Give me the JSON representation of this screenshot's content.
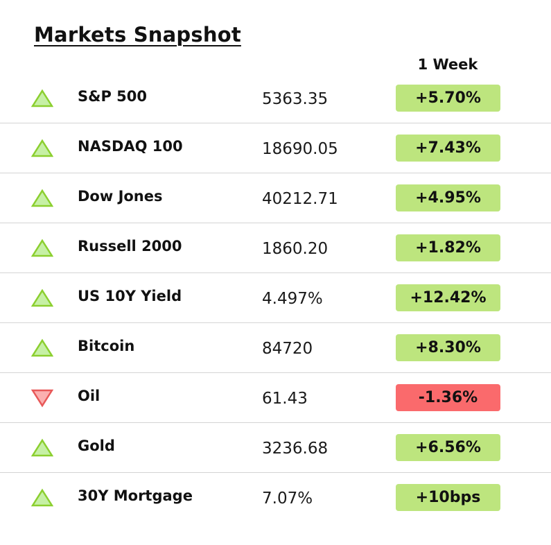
{
  "title": "Markets Snapshot",
  "column_header": "1 Week",
  "colors": {
    "up_badge": "#bde57e",
    "down_badge": "#fa6a6c",
    "up_arrow_fill": "#c6f0a5",
    "up_arrow_stroke": "#8bcf2f",
    "down_arrow_fill": "#fbb0b0",
    "down_arrow_stroke": "#e85858"
  },
  "rows": [
    {
      "name": "S&P 500",
      "value": "5363.35",
      "change": "+5.70%",
      "direction": "up",
      "icon": "triangle-up-icon"
    },
    {
      "name": "NASDAQ 100",
      "value": "18690.05",
      "change": "+7.43%",
      "direction": "up",
      "icon": "triangle-up-icon"
    },
    {
      "name": "Dow Jones",
      "value": "40212.71",
      "change": "+4.95%",
      "direction": "up",
      "icon": "triangle-up-icon"
    },
    {
      "name": "Russell 2000",
      "value": "1860.20",
      "change": "+1.82%",
      "direction": "up",
      "icon": "triangle-up-icon"
    },
    {
      "name": "US 10Y Yield",
      "value": "4.497%",
      "change": "+12.42%",
      "direction": "up",
      "icon": "triangle-up-icon"
    },
    {
      "name": "Bitcoin",
      "value": "84720",
      "change": "+8.30%",
      "direction": "up",
      "icon": "triangle-up-icon"
    },
    {
      "name": "Oil",
      "value": "61.43",
      "change": "-1.36%",
      "direction": "down",
      "icon": "triangle-down-icon"
    },
    {
      "name": "Gold",
      "value": "3236.68",
      "change": "+6.56%",
      "direction": "up",
      "icon": "triangle-up-icon"
    },
    {
      "name": "30Y Mortgage",
      "value": "7.07%",
      "change": "+10bps",
      "direction": "up",
      "icon": "triangle-up-icon"
    }
  ]
}
